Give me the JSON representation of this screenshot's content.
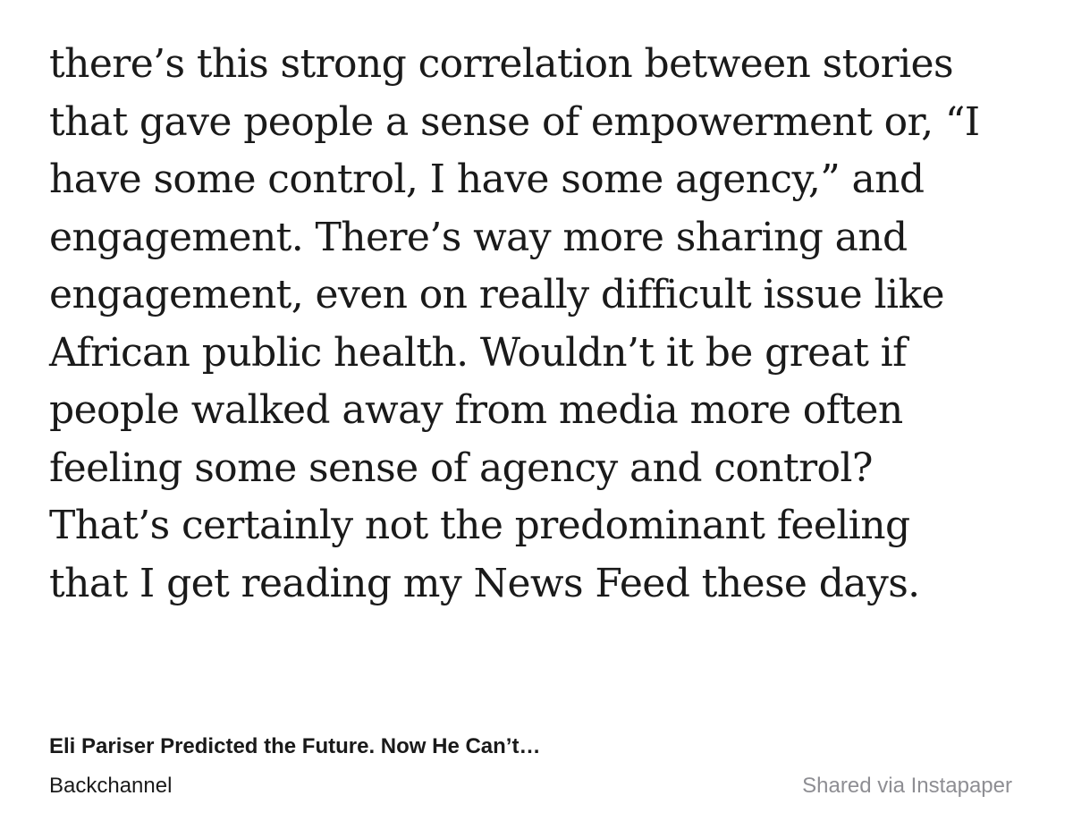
{
  "quote": {
    "lines": [
      "there’s this strong correlation between stories",
      "that gave people a sense of empowerment or, “I",
      "have some control, I have some agency,” and",
      "engagement. There’s way more sharing and",
      "engagement, even on really difficult issue like",
      "African public health. Wouldn’t it be great if",
      "people walked away from media more often",
      "feeling some sense of agency and control?",
      "That’s certainly not the predominant feeling",
      "that I get reading my News Feed these days."
    ]
  },
  "footer": {
    "article_title": "Eli Pariser Predicted the Future. Now He Can’t…",
    "publication": "Backchannel",
    "shared_via": "Shared via Instapaper"
  },
  "colors": {
    "text": "#1a1a1a",
    "muted": "#8e8e93",
    "background": "#ffffff"
  }
}
